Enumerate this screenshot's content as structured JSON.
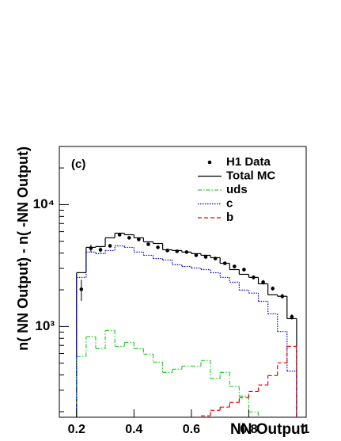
{
  "chart_data": {
    "type": "histogram",
    "annotation": "(c)",
    "xlabel": "NN Output",
    "ylabel": "n( NN Output) - n( -NN Output)",
    "bins": [
      0.2,
      0.2333,
      0.2667,
      0.3,
      0.3333,
      0.3667,
      0.4,
      0.4333,
      0.4667,
      0.5,
      0.5333,
      0.5667,
      0.6,
      0.6333,
      0.6667,
      0.7,
      0.7333,
      0.7667,
      0.8,
      0.8333,
      0.8667,
      0.9,
      0.9333,
      0.9667
    ],
    "series": [
      {
        "name": "H1 Data",
        "style": "points",
        "color": "#000000",
        "values": [
          2020,
          4390,
          4260,
          4590,
          5660,
          5340,
          5180,
          4730,
          4460,
          4200,
          4140,
          4080,
          3840,
          3720,
          3610,
          3300,
          3110,
          2930,
          2530,
          2310,
          2050,
          1770,
          1200
        ],
        "errors": [
          400,
          300,
          200,
          150,
          150,
          150,
          150,
          120,
          120,
          100,
          100,
          100,
          100,
          100,
          100,
          100,
          100,
          100,
          100,
          100,
          80,
          80,
          60
        ]
      },
      {
        "name": "Total MC",
        "style": "solid",
        "color": "#000000",
        "values": [
          2765,
          4460,
          4530,
          5340,
          5830,
          5660,
          5340,
          4950,
          4800,
          4260,
          4200,
          4080,
          3960,
          3840,
          3670,
          3300,
          2930,
          2680,
          2530,
          2240,
          1820,
          1770,
          1160
        ]
      },
      {
        "name": "uds",
        "style": "dashdot",
        "color": "#33cc33",
        "values": [
          567,
          823,
          658,
          928,
          688,
          741,
          658,
          593,
          510,
          420,
          446,
          473,
          473,
          526,
          373,
          420,
          321,
          268,
          199,
          null,
          null,
          null,
          null
        ]
      },
      {
        "name": "c",
        "style": "dotted",
        "color": "#0000dd",
        "values": [
          2530,
          4080,
          3960,
          4200,
          4590,
          4460,
          4080,
          3840,
          3610,
          3510,
          3210,
          3110,
          3020,
          2930,
          2760,
          2530,
          2310,
          1990,
          1880,
          1610,
          1270,
          910,
          430
        ]
      },
      {
        "name": "b",
        "style": "dashed",
        "color": "#ee0000",
        "values": [
          null,
          null,
          null,
          null,
          null,
          null,
          null,
          null,
          null,
          null,
          null,
          null,
          null,
          185,
          205,
          218,
          238,
          260,
          293,
          331,
          396,
          503,
          688
        ]
      }
    ],
    "xlim": [
      0.14,
      1.0
    ],
    "xticks": [
      0.2,
      0.4,
      0.6,
      0.8,
      1
    ],
    "ylim": [
      180,
      30000
    ],
    "ylog": true,
    "yticks": [
      {
        "value": 1000,
        "label": "10³"
      },
      {
        "value": 10000,
        "label": "10⁴"
      }
    ],
    "yminorticks": [
      200,
      300,
      400,
      500,
      600,
      700,
      800,
      900,
      2000,
      3000,
      4000,
      5000,
      6000,
      7000,
      8000,
      9000,
      20000
    ],
    "legend": "upper right"
  }
}
